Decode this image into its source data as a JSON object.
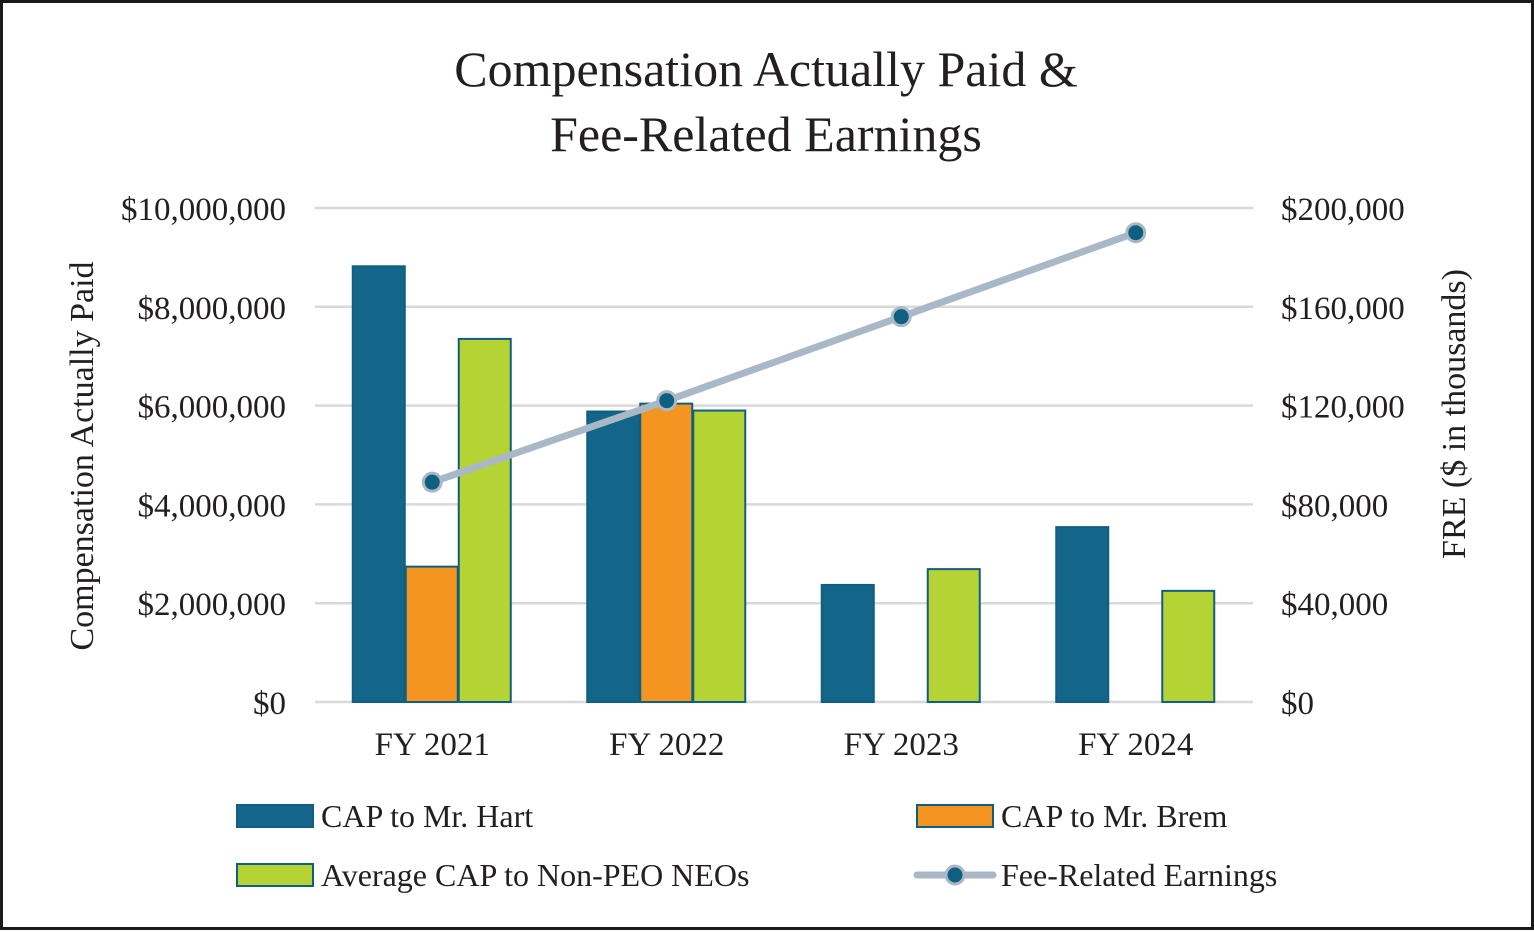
{
  "chart_data": {
    "type": "bar",
    "title_lines": [
      "Compensation Actually Paid &",
      "Fee-Related Earnings"
    ],
    "categories": [
      "FY 2021",
      "FY 2022",
      "FY 2023",
      "FY 2024"
    ],
    "ylabel": "Compensation Actually Paid",
    "ylabel_right": "FRE ($ in thousands)",
    "ylim": [
      0,
      10000000
    ],
    "ylim_right": [
      0,
      200000
    ],
    "yticks": [
      0,
      2000000,
      4000000,
      6000000,
      8000000,
      10000000
    ],
    "ytick_labels": [
      "$0",
      "$2,000,000",
      "$4,000,000",
      "$6,000,000",
      "$8,000,000",
      "$10,000,000"
    ],
    "yticks_right": [
      0,
      40000,
      80000,
      120000,
      160000,
      200000
    ],
    "ytick_labels_right": [
      "$0",
      "$40,000",
      "$80,000",
      "$120,000",
      "$160,000",
      "$200,000"
    ],
    "grid": true,
    "legend_position": "bottom",
    "series": [
      {
        "name": "CAP to Mr. Hart",
        "kind": "bar",
        "axis": "left",
        "color": "#13658a",
        "values": [
          8820000,
          5880000,
          2370000,
          3540000
        ]
      },
      {
        "name": "CAP to Mr. Brem",
        "kind": "bar",
        "axis": "left",
        "color": "#f49521",
        "values": [
          2740000,
          6040000,
          null,
          null
        ]
      },
      {
        "name": "Average CAP to Non-PEO NEOs",
        "kind": "bar",
        "axis": "left",
        "color": "#b5d334",
        "values": [
          7350000,
          5900000,
          2690000,
          2250000
        ]
      },
      {
        "name": "Fee-Related Earnings",
        "kind": "line",
        "axis": "right",
        "color": "#a9b8c6",
        "marker_color": "#0f5f80",
        "values": [
          89000,
          122000,
          156000,
          190000
        ]
      }
    ]
  }
}
